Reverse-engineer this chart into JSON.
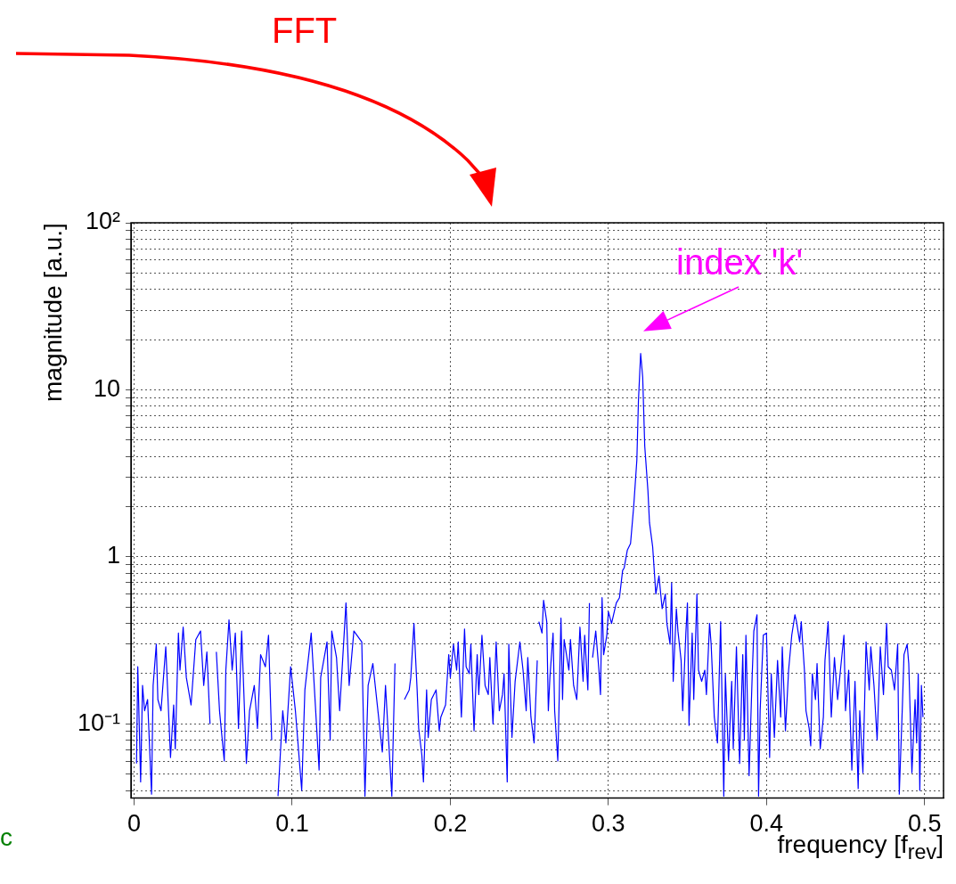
{
  "chart_data": {
    "type": "line",
    "xlabel": "frequency [f$_{rev}$]",
    "ylabel": "magnitude [a.u.]",
    "annotations": [
      "FFT",
      {
        "text": "index 'k'",
        "x": 0.3204,
        "y": 16.5
      },
      "c"
    ],
    "log": "y",
    "grid": true,
    "legend": false,
    "marker": "none",
    "line_style": "solid",
    "xlim": [
      -0.002,
      0.512
    ],
    "ylim": [
      0.036,
      100
    ],
    "xticks": [
      0,
      0.1,
      0.2,
      0.3,
      0.4,
      0.5
    ],
    "yticks": [
      {
        "value": 0.04,
        "label": null
      },
      {
        "value": 0.05,
        "label": null
      },
      {
        "value": 0.06,
        "label": null
      },
      {
        "value": 0.07,
        "label": null
      },
      {
        "value": 0.08,
        "label": null
      },
      {
        "value": 0.09,
        "label": null
      },
      {
        "value": 0.1,
        "label": "10⁻¹"
      },
      {
        "value": 0.2,
        "label": null
      },
      {
        "value": 0.3,
        "label": null
      },
      {
        "value": 0.4,
        "label": null
      },
      {
        "value": 0.5,
        "label": null
      },
      {
        "value": 0.6,
        "label": null
      },
      {
        "value": 0.7,
        "label": null
      },
      {
        "value": 0.8,
        "label": null
      },
      {
        "value": 0.9,
        "label": null
      },
      1,
      {
        "value": 2,
        "label": null
      },
      {
        "value": 3,
        "label": null
      },
      {
        "value": 4,
        "label": null
      },
      {
        "value": 5,
        "label": null
      },
      {
        "value": 6,
        "label": null
      },
      {
        "value": 7,
        "label": null
      },
      {
        "value": 8,
        "label": null
      },
      {
        "value": 9,
        "label": null
      },
      10,
      {
        "value": 20,
        "label": null
      },
      {
        "value": 30,
        "label": null
      },
      {
        "value": 40,
        "label": null
      },
      {
        "value": 50,
        "label": null
      },
      {
        "value": 60,
        "label": null
      },
      {
        "value": 70,
        "label": null
      },
      {
        "value": 80,
        "label": null
      },
      {
        "value": 90,
        "label": null
      },
      {
        "value": 100,
        "label": "10²"
      }
    ],
    "series": [
      {
        "color": "#0000ff",
        "x": [
          0.0015,
          0.0023,
          0.0041,
          0.0053,
          0.0066,
          0.0085,
          0.011,
          0.012,
          0.014,
          0.015,
          0.017,
          0.02,
          0.023,
          0.025,
          0.026,
          0.028,
          0.029,
          0.031,
          0.033,
          0.036,
          0.039,
          0.042,
          0.044,
          0.046,
          0.048,
          0.05,
          0.052,
          0.054,
          0.057,
          0.058,
          0.06,
          0.062,
          0.064,
          0.066,
          0.068,
          0.071,
          0.073,
          0.076,
          0.078,
          0.08,
          0.083,
          0.085,
          0.087,
          0.089,
          0.091,
          0.094,
          0.096,
          0.099,
          0.102,
          0.106,
          0.108,
          0.112,
          0.117,
          0.118,
          0.122,
          0.124,
          0.125,
          0.128,
          0.13,
          0.134,
          0.136,
          0.139,
          0.144,
          0.146,
          0.148,
          0.151,
          0.157,
          0.159,
          0.163,
          0.165,
          0.168,
          0.171,
          0.174,
          0.175,
          0.177,
          0.179,
          0.18,
          0.182,
          0.183,
          0.185,
          0.186,
          0.188,
          0.191,
          0.193,
          0.194,
          0.197,
          0.199,
          0.2,
          0.202,
          0.204,
          0.205,
          0.207,
          0.209,
          0.21,
          0.212,
          0.213,
          0.215,
          0.217,
          0.218,
          0.22,
          0.222,
          0.224,
          0.225,
          0.227,
          0.229,
          0.231,
          0.233,
          0.234,
          0.236,
          0.237,
          0.239,
          0.241,
          0.244,
          0.246,
          0.248,
          0.249,
          0.251,
          0.253,
          0.255,
          0.2555,
          0.256,
          0.258,
          0.259,
          0.261,
          0.262,
          0.263,
          0.265,
          0.266,
          0.268,
          0.27,
          0.271,
          0.272,
          0.275,
          0.276,
          0.278,
          0.28,
          0.282,
          0.284,
          0.285,
          0.287,
          0.288,
          0.289,
          0.29,
          0.292,
          0.294,
          0.295,
          0.296,
          0.297,
          0.299,
          0.3,
          0.302,
          0.305,
          0.307,
          0.309,
          0.31,
          0.312,
          0.314,
          0.316,
          0.318,
          0.319,
          0.3204,
          0.3217,
          0.323,
          0.325,
          0.326,
          0.328,
          0.33,
          0.332,
          0.334,
          0.336,
          0.337,
          0.339,
          0.34,
          0.341,
          0.343,
          0.344,
          0.346,
          0.347,
          0.349,
          0.35,
          0.351,
          0.353,
          0.354,
          0.356,
          0.357,
          0.359,
          0.361,
          0.362,
          0.364,
          0.365,
          0.367,
          0.369,
          0.371,
          0.373,
          0.374,
          0.376,
          0.378,
          0.379,
          0.381,
          0.383,
          0.385,
          0.386,
          0.387,
          0.389,
          0.391,
          0.392,
          0.394,
          0.395,
          0.396,
          0.398,
          0.4,
          0.402,
          0.403,
          0.405,
          0.407,
          0.409,
          0.41,
          0.412,
          0.414,
          0.416,
          0.418,
          0.419,
          0.421,
          0.422,
          0.424,
          0.425,
          0.427,
          0.428,
          0.429,
          0.431,
          0.432,
          0.434,
          0.436,
          0.437,
          0.439,
          0.441,
          0.443,
          0.445,
          0.447,
          0.449,
          0.45,
          0.452,
          0.454,
          0.456,
          0.458,
          0.459,
          0.461,
          0.463,
          0.465,
          0.466,
          0.468,
          0.47,
          0.472,
          0.474,
          0.476,
          0.477,
          0.479,
          0.481,
          0.483,
          0.484,
          0.486,
          0.487,
          0.489,
          0.49,
          0.492,
          0.494,
          0.495,
          0.496,
          0.497,
          0.498,
          0.499
        ],
        "values": [
          0.058,
          0.22,
          0.045,
          0.17,
          0.12,
          0.14,
          0.038,
          0.17,
          0.3,
          0.14,
          0.12,
          0.29,
          0.063,
          0.13,
          0.071,
          0.35,
          0.21,
          0.38,
          0.19,
          0.13,
          0.32,
          0.36,
          0.17,
          0.27,
          0.1,
          null,
          0.27,
          0.12,
          0.06,
          0.21,
          0.42,
          0.21,
          0.35,
          0.094,
          0.36,
          0.058,
          0.12,
          0.17,
          0.094,
          0.26,
          0.22,
          0.34,
          0.08,
          null,
          0.037,
          0.12,
          0.077,
          0.22,
          0.12,
          0.04,
          0.16,
          0.35,
          0.053,
          0.19,
          0.31,
          0.08,
          0.36,
          0.25,
          0.12,
          0.53,
          0.17,
          0.36,
          0.31,
          0.037,
          0.17,
          0.23,
          0.068,
          0.17,
          0.037,
          0.23,
          null,
          0.14,
          0.16,
          0.19,
          0.4,
          0.16,
          0.094,
          0.065,
          0.045,
          0.16,
          0.083,
          0.14,
          0.16,
          0.091,
          0.11,
          0.13,
          0.26,
          0.19,
          0.3,
          0.21,
          0.31,
          0.11,
          0.37,
          0.22,
          0.2,
          0.3,
          0.091,
          0.26,
          0.15,
          0.34,
          0.17,
          0.15,
          0.25,
          0.1,
          0.31,
          0.12,
          0.15,
          0.2,
          0.045,
          0.3,
          0.083,
          0.18,
          0.31,
          0.21,
          0.12,
          0.25,
          0.11,
          0.077,
          0.24,
          null,
          0.41,
          0.35,
          0.55,
          0.41,
          0.12,
          0.19,
          0.35,
          0.12,
          0.06,
          0.43,
          0.14,
          0.32,
          0.21,
          0.32,
          0.17,
          0.14,
          0.38,
          0.18,
          0.34,
          0.16,
          0.53,
          null,
          0.25,
          0.36,
          0.21,
          0.15,
          0.57,
          0.26,
          0.34,
          0.47,
          0.4,
          0.53,
          0.57,
          0.83,
          0.86,
          1.1,
          1.2,
          2.0,
          3.8,
          8.6,
          16.5,
          11.9,
          4.6,
          2.5,
          1.6,
          1.15,
          0.6,
          0.77,
          0.49,
          0.6,
          0.4,
          0.3,
          0.7,
          0.18,
          0.49,
          0.36,
          0.24,
          0.12,
          0.35,
          0.53,
          0.098,
          0.35,
          0.14,
          0.6,
          0.21,
          0.18,
          0.21,
          0.15,
          0.4,
          0.3,
          0.11,
          0.077,
          0.41,
          0.037,
          0.2,
          0.06,
          0.18,
          0.071,
          0.29,
          0.058,
          0.26,
          0.08,
          0.34,
          0.049,
          0.2,
          0.36,
          0.45,
          0.037,
          0.12,
          0.34,
          0.35,
          0.063,
          0.2,
          0.083,
          0.24,
          0.11,
          0.29,
          0.091,
          0.21,
          0.34,
          0.45,
          0.41,
          0.31,
          0.41,
          0.21,
          0.12,
          0.094,
          0.074,
          0.2,
          0.14,
          0.23,
          0.071,
          0.11,
          0.24,
          0.41,
          0.11,
          0.25,
          0.14,
          0.22,
          0.34,
          0.12,
          0.21,
          0.053,
          0.18,
          0.041,
          0.12,
          0.051,
          0.31,
          0.16,
          0.29,
          0.17,
          0.08,
          0.29,
          0.15,
          0.4,
          0.22,
          0.21,
          0.16,
          0.3,
          0.038,
          0.13,
          0.26,
          0.3,
          0.23,
          0.051,
          0.14,
          0.077,
          0.2,
          0.04,
          0.17,
          0.11
        ]
      }
    ]
  }
}
